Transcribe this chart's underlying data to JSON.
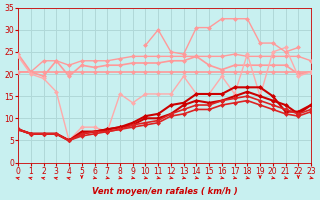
{
  "title": "",
  "xlabel": "Vent moyen/en rafales ( km/h )",
  "ylabel": "",
  "xlim": [
    0,
    23
  ],
  "ylim": [
    0,
    35
  ],
  "yticks": [
    0,
    5,
    10,
    15,
    20,
    25,
    30,
    35
  ],
  "xticks": [
    0,
    1,
    2,
    3,
    4,
    5,
    6,
    7,
    8,
    9,
    10,
    11,
    12,
    13,
    14,
    15,
    16,
    17,
    18,
    19,
    20,
    21,
    22,
    23
  ],
  "bg_color": "#c8f0f0",
  "grid_color": "#b0d8d8",
  "series": [
    {
      "x": [
        0,
        1,
        2,
        3,
        4,
        5,
        6,
        7,
        8,
        9,
        10,
        11,
        12,
        13,
        14,
        15,
        16,
        17,
        18,
        19,
        20,
        21,
        22,
        23
      ],
      "y": [
        24.5,
        20.5,
        19.5,
        23,
        19.5,
        22,
        21.5,
        22,
        22,
        22.5,
        22.5,
        22.5,
        23,
        23,
        24,
        22,
        21,
        22,
        22,
        22,
        22,
        22,
        20,
        20.5
      ],
      "color": "#ff9999",
      "lw": 1.2,
      "marker": "D",
      "ms": 2.5
    },
    {
      "x": [
        0,
        1,
        2,
        3,
        4,
        5,
        6,
        7,
        8,
        9,
        10,
        11,
        12,
        13,
        14,
        15,
        16,
        17,
        18,
        19,
        20,
        21,
        22,
        23
      ],
      "y": [
        20.5,
        20.5,
        20.5,
        20.5,
        20.5,
        20.5,
        20.5,
        20.5,
        20.5,
        20.5,
        20.5,
        20.5,
        20.5,
        20.5,
        20.5,
        20.5,
        20.5,
        20.5,
        20.5,
        20.5,
        20.5,
        20.5,
        20.5,
        20.5
      ],
      "color": "#ff9999",
      "lw": 1.2,
      "marker": "D",
      "ms": 2.5
    },
    {
      "x": [
        0,
        1,
        2,
        3,
        4,
        5,
        6,
        7,
        8,
        9,
        10,
        11,
        12,
        13,
        14,
        15,
        16,
        17,
        18,
        19,
        20,
        21,
        22,
        23
      ],
      "y": [
        20.5,
        20.5,
        23,
        23,
        22,
        23,
        23,
        23,
        23.5,
        24,
        24,
        24,
        24,
        24,
        24,
        24,
        24,
        24.5,
        24,
        24,
        24,
        24,
        24,
        23
      ],
      "color": "#ff9999",
      "lw": 1.0,
      "marker": "D",
      "ms": 2.5
    },
    {
      "x": [
        0,
        1,
        2,
        3,
        4,
        5,
        6,
        7,
        8,
        9,
        10,
        11,
        12,
        13,
        14,
        15,
        16,
        17,
        18,
        19,
        20,
        21,
        22,
        23
      ],
      "y": [
        24,
        20,
        19,
        16,
        5,
        8,
        8,
        7,
        15.5,
        13.5,
        15.5,
        15.5,
        15.5,
        19.5,
        15.5,
        15.5,
        19.5,
        15.5,
        24.5,
        15,
        25,
        26,
        19.5,
        20.5
      ],
      "color": "#ffaaaa",
      "lw": 1.0,
      "marker": "D",
      "ms": 2.5
    },
    {
      "x": [
        0,
        1,
        2,
        3,
        4,
        5,
        6,
        7,
        8,
        9,
        10,
        11,
        12,
        13,
        14,
        15,
        16,
        17,
        18,
        19,
        20,
        21,
        22,
        23
      ],
      "y": [
        null,
        null,
        null,
        null,
        null,
        null,
        null,
        null,
        null,
        null,
        26.5,
        30,
        25,
        24.5,
        30.5,
        30.5,
        32.5,
        32.5,
        32.5,
        27,
        27,
        25,
        26,
        null
      ],
      "color": "#ff9999",
      "lw": 1.0,
      "marker": "D",
      "ms": 2.5
    },
    {
      "x": [
        0,
        1,
        2,
        3,
        4,
        5,
        6,
        7,
        8,
        9,
        10,
        11,
        12,
        13,
        14,
        15,
        16,
        17,
        18,
        19,
        20,
        21,
        22,
        23
      ],
      "y": [
        7.5,
        6.5,
        6.5,
        6.5,
        5,
        6.5,
        7,
        7.5,
        8,
        9,
        10.5,
        11,
        13,
        13.5,
        15.5,
        15.5,
        15.5,
        17,
        17,
        17,
        15,
        11.5,
        11.5,
        13
      ],
      "color": "#cc0000",
      "lw": 1.5,
      "marker": "D",
      "ms": 2.5
    },
    {
      "x": [
        0,
        1,
        2,
        3,
        4,
        5,
        6,
        7,
        8,
        9,
        10,
        11,
        12,
        13,
        14,
        15,
        16,
        17,
        18,
        19,
        20,
        21,
        22,
        23
      ],
      "y": [
        7.5,
        6.5,
        6.5,
        6.5,
        5,
        7,
        7,
        7.5,
        8,
        8.5,
        10,
        10,
        11,
        13,
        14,
        13.5,
        14,
        15,
        16,
        15,
        14,
        13,
        11,
        13
      ],
      "color": "#cc0000",
      "lw": 1.5,
      "marker": "D",
      "ms": 2.5
    },
    {
      "x": [
        0,
        1,
        2,
        3,
        4,
        5,
        6,
        7,
        8,
        9,
        10,
        11,
        12,
        13,
        14,
        15,
        16,
        17,
        18,
        19,
        20,
        21,
        22,
        23
      ],
      "y": [
        7.5,
        6.5,
        6.5,
        6.5,
        5,
        6.5,
        7,
        7,
        7.5,
        8.5,
        9,
        9.5,
        11,
        12,
        13,
        13,
        14,
        14.5,
        15,
        14,
        13,
        12,
        11,
        12
      ],
      "color": "#dd2222",
      "lw": 1.2,
      "marker": "D",
      "ms": 2.5
    },
    {
      "x": [
        0,
        1,
        2,
        3,
        4,
        5,
        6,
        7,
        8,
        9,
        10,
        11,
        12,
        13,
        14,
        15,
        16,
        17,
        18,
        19,
        20,
        21,
        22,
        23
      ],
      "y": [
        7.5,
        6.5,
        6.5,
        6.5,
        5,
        6,
        6.5,
        7,
        7.5,
        8,
        8.5,
        9,
        10.5,
        11,
        12,
        12,
        13,
        13.5,
        14,
        13,
        12,
        11,
        10.5,
        11.5
      ],
      "color": "#dd2222",
      "lw": 1.2,
      "marker": "D",
      "ms": 2.5
    }
  ],
  "wind_arrows": {
    "x": [
      0,
      1,
      2,
      3,
      4,
      5,
      6,
      7,
      8,
      9,
      10,
      11,
      12,
      13,
      14,
      15,
      16,
      17,
      18,
      19,
      20,
      21,
      22,
      23
    ],
    "angles": [
      225,
      225,
      225,
      225,
      225,
      0,
      45,
      45,
      45,
      45,
      45,
      45,
      45,
      45,
      45,
      45,
      45,
      45,
      45,
      0,
      45,
      45,
      0,
      45
    ],
    "color": "#dd0000"
  }
}
